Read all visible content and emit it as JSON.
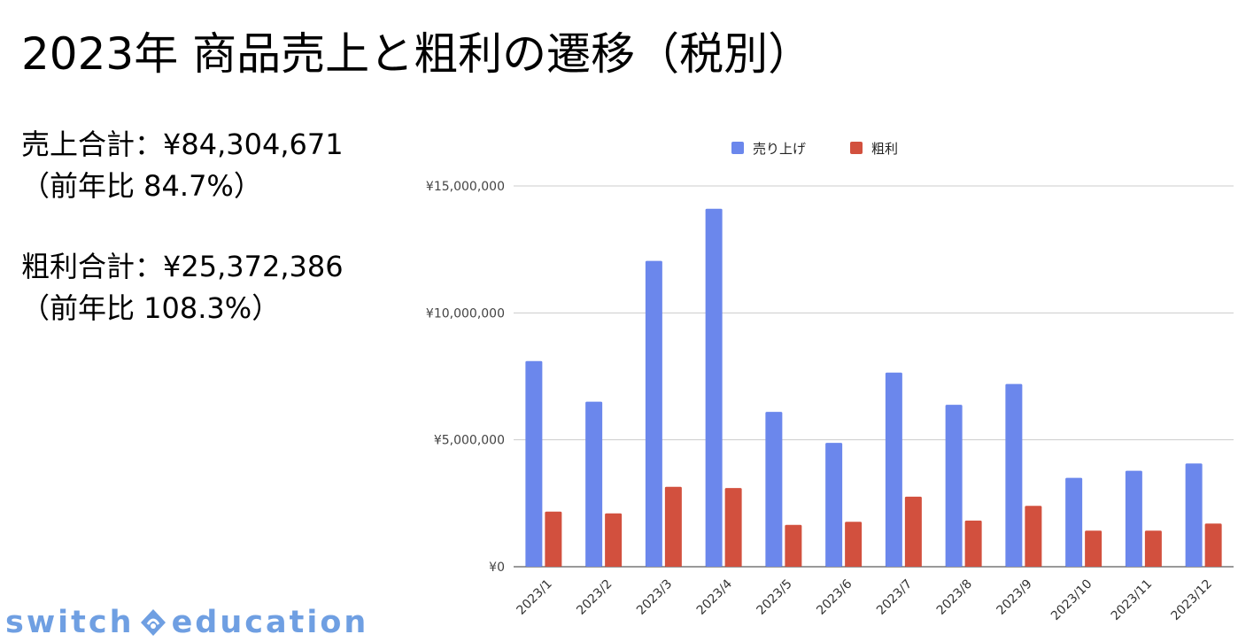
{
  "page": {
    "title": "2023年 商品売上と粗利の遷移（税別）",
    "summary": {
      "sales_total": "売上合計：¥84,304,671",
      "sales_yoy": "（前年比 84.7%）",
      "profit_total": "粗利合計：¥25,372,386",
      "profit_yoy": "（前年比 108.3%）"
    },
    "logo": {
      "left": "switch",
      "right": "education",
      "badge_icon": "switch-education-badge-icon"
    }
  },
  "chart_data": {
    "type": "bar",
    "categories": [
      "2023/1",
      "2023/2",
      "2023/3",
      "2023/4",
      "2023/5",
      "2023/6",
      "2023/7",
      "2023/8",
      "2023/9",
      "2023/10",
      "2023/11",
      "2023/12"
    ],
    "series": [
      {
        "name": "売り上げ",
        "color": "#6b87ec",
        "values": [
          8100000,
          6500000,
          12050000,
          14100000,
          6100000,
          4880000,
          7650000,
          6380000,
          7200000,
          3500000,
          3780000,
          4070000
        ]
      },
      {
        "name": "粗利",
        "color": "#d2503e",
        "values": [
          2170000,
          2100000,
          3150000,
          3100000,
          1650000,
          1770000,
          2760000,
          1820000,
          2400000,
          1420000,
          1420000,
          1700000
        ]
      }
    ],
    "y_ticks": [
      "¥0",
      "¥5,000,000",
      "¥10,000,000",
      "¥15,000,000"
    ],
    "y_tick_values": [
      0,
      5000000,
      10000000,
      15000000
    ],
    "ylim": [
      0,
      15000000
    ],
    "grid": true,
    "legend_position": "top-center"
  }
}
